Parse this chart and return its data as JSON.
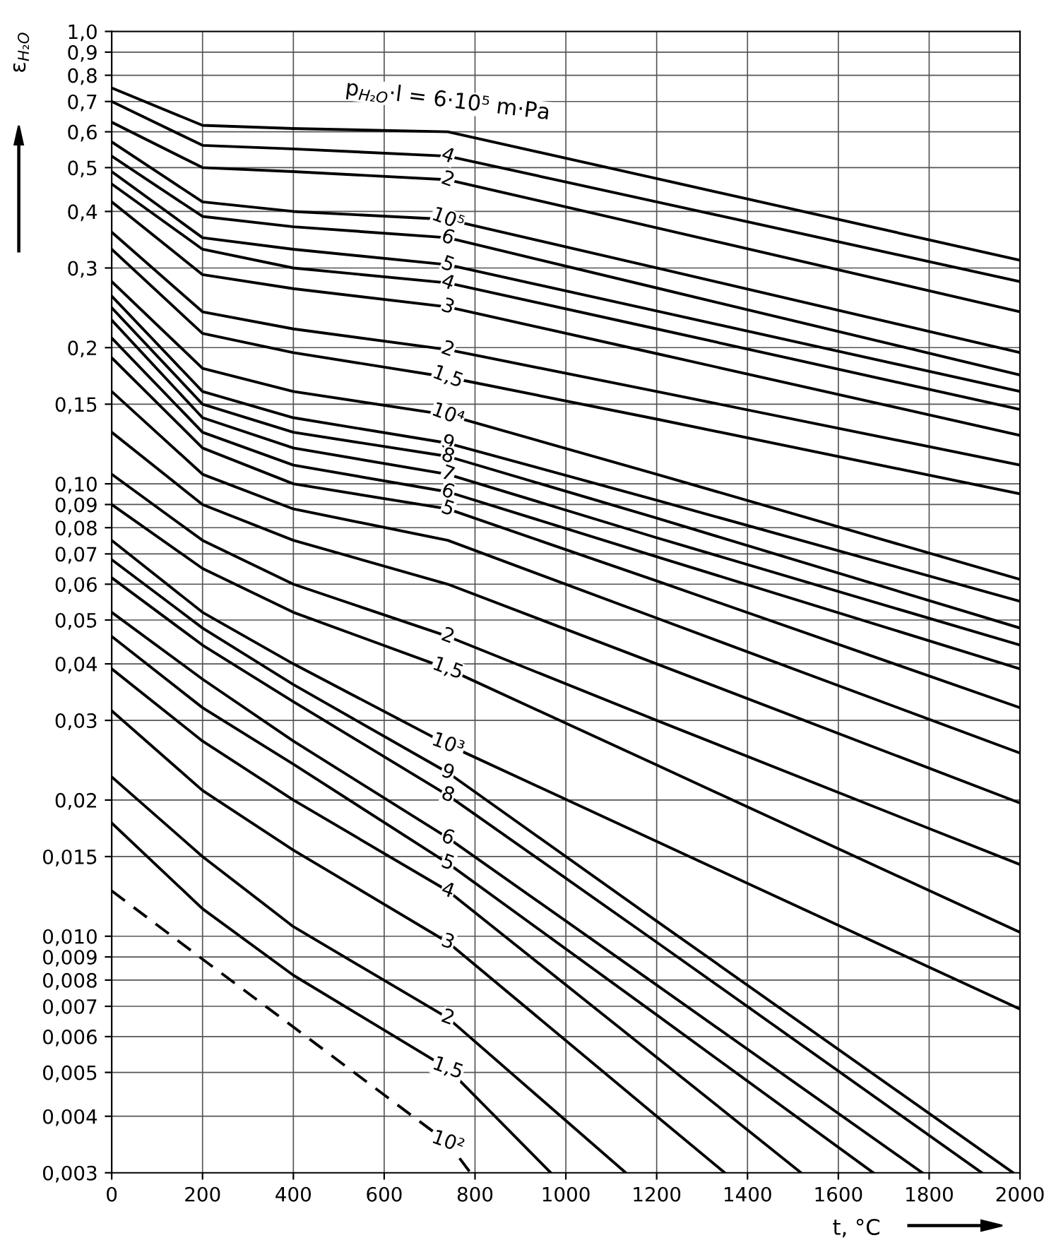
{
  "chart_data": {
    "type": "line",
    "xlabel": "t, °C",
    "ylabel": "ε$_{H₂O}$",
    "log": "y",
    "grid": true,
    "legend": false,
    "marker": "none",
    "xlim": [
      0,
      2000
    ],
    "ylim": [
      0.003,
      1.0
    ],
    "xticks": [
      0,
      200,
      400,
      600,
      800,
      1000,
      1200,
      1400,
      1600,
      1800,
      2000
    ],
    "yticks": [
      {
        "value": 0.003,
        "label": "0,003"
      },
      {
        "value": 0.004,
        "label": "0,004"
      },
      {
        "value": 0.005,
        "label": "0,005"
      },
      {
        "value": 0.006,
        "label": "0,006"
      },
      {
        "value": 0.007,
        "label": "0,007"
      },
      {
        "value": 0.008,
        "label": "0,008"
      },
      {
        "value": 0.009,
        "label": "0,009"
      },
      {
        "value": 0.01,
        "label": "0,010"
      },
      {
        "value": 0.015,
        "label": "0,015"
      },
      {
        "value": 0.02,
        "label": "0,02"
      },
      {
        "value": 0.03,
        "label": "0,03"
      },
      {
        "value": 0.04,
        "label": "0,04"
      },
      {
        "value": 0.05,
        "label": "0,05"
      },
      {
        "value": 0.06,
        "label": "0,06"
      },
      {
        "value": 0.07,
        "label": "0,07"
      },
      {
        "value": 0.08,
        "label": "0,08"
      },
      {
        "value": 0.09,
        "label": "0,09"
      },
      {
        "value": 0.1,
        "label": "0,10"
      },
      {
        "value": 0.15,
        "label": "0,15"
      },
      {
        "value": 0.2,
        "label": "0,2"
      },
      {
        "value": 0.3,
        "label": "0,3"
      },
      {
        "value": 0.4,
        "label": "0,4"
      },
      {
        "value": 0.5,
        "label": "0,5"
      },
      {
        "value": 0.6,
        "label": "0,6"
      },
      {
        "value": 0.7,
        "label": "0,7"
      },
      {
        "value": 0.8,
        "label": "0,8"
      },
      {
        "value": 0.9,
        "label": "0,9"
      },
      {
        "value": 1.0,
        "label": "1,0"
      }
    ],
    "series": [
      {
        "name": "p$_{H₂O}$·l = 6·10⁵ m·Pa",
        "color": "#000000",
        "x": [
          0,
          200,
          400,
          740,
          1200,
          2000
        ],
        "values": [
          0.75,
          0.62,
          0.61,
          0.6,
          0.473,
          0.312
        ]
      },
      {
        "name": "4",
        "color": "#000000",
        "x": [
          0,
          200,
          400,
          740,
          1200,
          2000
        ],
        "values": [
          0.7,
          0.56,
          0.55,
          0.53,
          0.42,
          0.28
        ]
      },
      {
        "name": "2",
        "color": "#000000",
        "x": [
          0,
          200,
          400,
          740,
          1200,
          2000
        ],
        "values": [
          0.63,
          0.5,
          0.49,
          0.47,
          0.368,
          0.24
        ]
      },
      {
        "name": "10⁵",
        "color": "#000000",
        "x": [
          0,
          200,
          400,
          740,
          1200,
          2000
        ],
        "values": [
          0.57,
          0.42,
          0.4,
          0.384,
          0.3,
          0.195
        ]
      },
      {
        "name": "6",
        "color": "#000000",
        "x": [
          0,
          200,
          400,
          740,
          1200,
          2000
        ],
        "values": [
          0.53,
          0.39,
          0.37,
          0.35,
          0.271,
          0.174
        ]
      },
      {
        "name": "5",
        "color": "#000000",
        "x": [
          0,
          200,
          400,
          740,
          1200,
          2000
        ],
        "values": [
          0.49,
          0.35,
          0.33,
          0.305,
          0.241,
          0.16
        ]
      },
      {
        "name": "4",
        "color": "#000000",
        "x": [
          0,
          200,
          400,
          740,
          1200,
          2000
        ],
        "values": [
          0.46,
          0.33,
          0.3,
          0.278,
          0.22,
          0.146
        ]
      },
      {
        "name": "3",
        "color": "#000000",
        "x": [
          0,
          200,
          400,
          740,
          1200,
          2000
        ],
        "values": [
          0.42,
          0.29,
          0.27,
          0.246,
          0.194,
          0.128
        ]
      },
      {
        "name": "2",
        "color": "#000000",
        "x": [
          0,
          200,
          400,
          740,
          1200,
          2000
        ],
        "values": [
          0.36,
          0.24,
          0.22,
          0.198,
          0.16,
          0.11
        ]
      },
      {
        "name": "1,5",
        "color": "#000000",
        "x": [
          0,
          200,
          400,
          740,
          1200,
          2000
        ],
        "values": [
          0.33,
          0.215,
          0.195,
          0.172,
          0.139,
          0.095
        ]
      },
      {
        "name": "10⁴",
        "color": "#000000",
        "x": [
          0,
          200,
          400,
          740,
          1200,
          2000
        ],
        "values": [
          0.28,
          0.18,
          0.16,
          0.142,
          0.105,
          0.0615
        ]
      },
      {
        "name": "9",
        "color": "#000000",
        "x": [
          0,
          200,
          400,
          740,
          1200,
          2000
        ],
        "values": [
          0.26,
          0.16,
          0.14,
          0.123,
          0.092,
          0.055
        ]
      },
      {
        "name": "8",
        "color": "#000000",
        "x": [
          0,
          200,
          400,
          740,
          1200,
          2000
        ],
        "values": [
          0.245,
          0.15,
          0.13,
          0.115,
          0.084,
          0.048
        ]
      },
      {
        "name": "7",
        "color": "#000000",
        "x": [
          0,
          200,
          400,
          740,
          1200,
          2000
        ],
        "values": [
          0.23,
          0.14,
          0.12,
          0.105,
          0.076,
          0.044
        ]
      },
      {
        "name": "6",
        "color": "#000000",
        "x": [
          0,
          200,
          400,
          740,
          1200,
          2000
        ],
        "values": [
          0.21,
          0.13,
          0.11,
          0.096,
          0.069,
          0.039
        ]
      },
      {
        "name": "5",
        "color": "#000000",
        "x": [
          0,
          200,
          400,
          740,
          1200,
          2000
        ],
        "values": [
          0.19,
          0.12,
          0.1,
          0.088,
          0.061,
          0.032
        ]
      },
      {
        "color": "#000000",
        "x": [
          0,
          200,
          400,
          740,
          1200,
          2000
        ],
        "values": [
          0.16,
          0.105,
          0.088,
          0.075,
          0.0505,
          0.0254
        ]
      },
      {
        "color": "#000000",
        "x": [
          0,
          200,
          400,
          740,
          1200,
          2000
        ],
        "values": [
          0.13,
          0.09,
          0.075,
          0.06,
          0.04,
          0.0197
        ]
      },
      {
        "name": "2",
        "color": "#000000",
        "x": [
          0,
          200,
          400,
          740,
          1200,
          2000
        ],
        "values": [
          0.105,
          0.075,
          0.06,
          0.046,
          0.03,
          0.0144
        ]
      },
      {
        "name": "1,5",
        "color": "#000000",
        "x": [
          0,
          200,
          400,
          740,
          1200,
          2000
        ],
        "values": [
          0.09,
          0.065,
          0.052,
          0.039,
          0.0239,
          0.0102
        ]
      },
      {
        "name": "10³",
        "color": "#000000",
        "x": [
          0,
          200,
          400,
          740,
          1200,
          2000
        ],
        "values": [
          0.075,
          0.052,
          0.04,
          0.0265,
          0.0162,
          0.0069
        ]
      },
      {
        "name": "9",
        "color": "#000000",
        "x": [
          0,
          200,
          400,
          740,
          1200,
          1985
        ],
        "values": [
          0.068,
          0.048,
          0.036,
          0.023,
          0.0108,
          0.003
        ]
      },
      {
        "name": "8",
        "color": "#000000",
        "x": [
          0,
          200,
          400,
          740,
          1200,
          1916
        ],
        "values": [
          0.062,
          0.044,
          0.033,
          0.0205,
          0.0097,
          0.003
        ]
      },
      {
        "name": "6",
        "color": "#000000",
        "x": [
          0,
          200,
          400,
          740,
          1200,
          1785
        ],
        "values": [
          0.052,
          0.037,
          0.027,
          0.0165,
          0.0078,
          0.003
        ]
      },
      {
        "name": "5",
        "color": "#000000",
        "x": [
          0,
          200,
          400,
          740,
          1200,
          1677
        ],
        "values": [
          0.046,
          0.032,
          0.024,
          0.0145,
          0.0067,
          0.003
        ]
      },
      {
        "name": "4",
        "color": "#000000",
        "x": [
          0,
          200,
          400,
          740,
          1200,
          1518
        ],
        "values": [
          0.039,
          0.027,
          0.02,
          0.0126,
          0.0054,
          0.003
        ]
      },
      {
        "name": "3",
        "color": "#000000",
        "x": [
          0,
          200,
          400,
          740,
          1200,
          1350
        ],
        "values": [
          0.0315,
          0.021,
          0.0155,
          0.0097,
          0.004,
          0.003
        ]
      },
      {
        "name": "2",
        "color": "#000000",
        "x": [
          0,
          200,
          400,
          740,
          1132
        ],
        "values": [
          0.0225,
          0.015,
          0.0105,
          0.0066,
          0.003
        ]
      },
      {
        "name": "1,5",
        "color": "#000000",
        "x": [
          0,
          200,
          400,
          740,
          967
        ],
        "values": [
          0.0178,
          0.0115,
          0.0082,
          0.0051,
          0.003
        ]
      },
      {
        "name": "10²",
        "color": "#000000",
        "line_style": "dashed",
        "x": [
          0,
          200,
          400,
          740,
          790
        ],
        "values": [
          0.0126,
          0.0089,
          0.0063,
          0.0035,
          0.003
        ]
      }
    ]
  }
}
